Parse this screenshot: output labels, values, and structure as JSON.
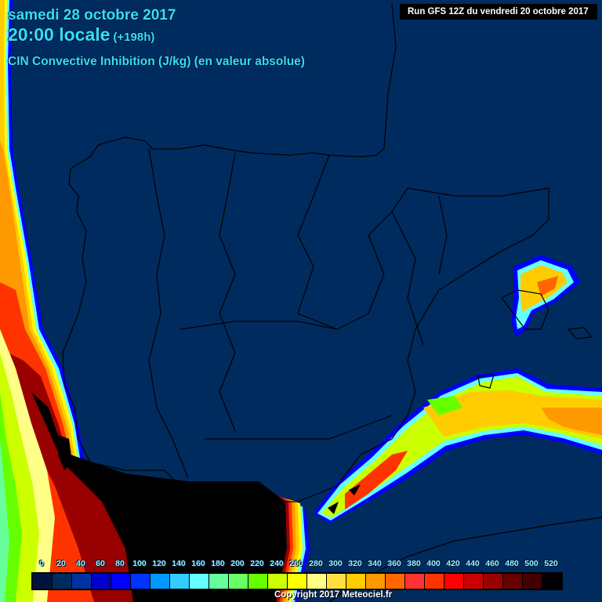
{
  "header": {
    "date": "samedi 28 octobre 2017",
    "time": "20:00 locale",
    "offset": "(+198h)",
    "parameter": "CIN Convective Inhibition (J/kg) (en valeur absolue)",
    "run": "Run GFS 12Z du vendredi 20 octobre 2017"
  },
  "footer": {
    "copyright": "Copyright 2017 Meteociel.fr"
  },
  "map": {
    "region": "Iberian Peninsula and western Mediterranean",
    "background_color": "#002b5e",
    "border_color": "#000000"
  },
  "legend": {
    "unit": "J/kg",
    "labels": [
      "0",
      "20",
      "40",
      "60",
      "80",
      "100",
      "120",
      "140",
      "160",
      "180",
      "200",
      "220",
      "240",
      "260",
      "280",
      "300",
      "320",
      "340",
      "360",
      "380",
      "400",
      "420",
      "440",
      "460",
      "480",
      "500",
      "520"
    ],
    "colors": [
      "#00133f",
      "#002b5e",
      "#0033a0",
      "#0000cc",
      "#0000ff",
      "#0033ff",
      "#0099ff",
      "#33ccff",
      "#66ffff",
      "#66ff99",
      "#66ff66",
      "#66ff00",
      "#ccff00",
      "#ffff00",
      "#ffff88",
      "#ffe040",
      "#ffcc00",
      "#ff9900",
      "#ff6600",
      "#ff3333",
      "#ff3300",
      "#ff0000",
      "#cc0000",
      "#990000",
      "#660000",
      "#440000",
      "#000000"
    ]
  }
}
